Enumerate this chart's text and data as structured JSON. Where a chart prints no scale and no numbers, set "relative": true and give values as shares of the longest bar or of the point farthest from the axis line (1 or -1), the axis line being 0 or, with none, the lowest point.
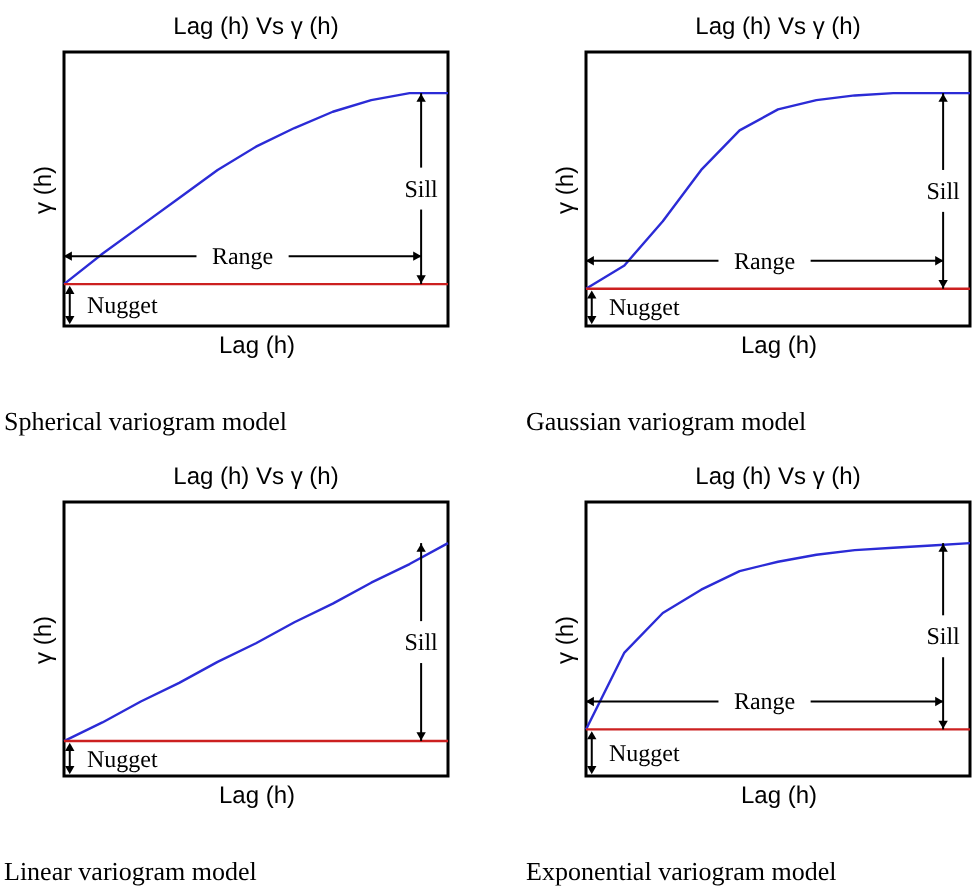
{
  "chart_data": [
    {
      "type": "line",
      "title": "Lag (h) Vs γ (h)",
      "xlabel": "Lag (h)",
      "ylabel": "γ (h)",
      "relative": true,
      "categories": [
        null,
        null,
        null,
        null,
        null,
        null,
        null,
        null,
        null,
        null,
        null
      ],
      "series": [
        {
          "color": "#2b2bd6",
          "values": [
            0.18,
            0.31,
            0.43,
            0.55,
            0.67,
            0.77,
            0.85,
            0.92,
            0.97,
            1.0,
            1.0
          ]
        },
        {
          "color": "#cc2020",
          "values": [
            0.18,
            0.18,
            0.18,
            0.18,
            0.18,
            0.18,
            0.18,
            0.18,
            0.18,
            0.18,
            0.18
          ]
        }
      ],
      "annotations": [
        "Sill",
        "Range",
        "Nugget",
        "Spherical variogram model"
      ]
    },
    {
      "type": "line",
      "title": "Lag (h) Vs γ (h)",
      "xlabel": "Lag (h)",
      "ylabel": "γ (h)",
      "relative": true,
      "categories": [
        null,
        null,
        null,
        null,
        null,
        null,
        null,
        null,
        null,
        null,
        null
      ],
      "series": [
        {
          "color": "#2b2bd6",
          "values": [
            0.16,
            0.26,
            0.45,
            0.67,
            0.84,
            0.93,
            0.97,
            0.99,
            1.0,
            1.0,
            1.0
          ]
        },
        {
          "color": "#cc2020",
          "values": [
            0.16,
            0.16,
            0.16,
            0.16,
            0.16,
            0.16,
            0.16,
            0.16,
            0.16,
            0.16,
            0.16
          ]
        }
      ],
      "annotations": [
        "Sill",
        "Range",
        "Nugget",
        "Gaussian variogram model"
      ]
    },
    {
      "type": "line",
      "title": "Lag (h) Vs γ (h)",
      "xlabel": "Lag (h)",
      "ylabel": "γ (h)",
      "relative": true,
      "categories": [
        null,
        null,
        null,
        null,
        null,
        null,
        null,
        null,
        null,
        null,
        null
      ],
      "series": [
        {
          "color": "#2b2bd6",
          "values": [
            0.15,
            0.23,
            0.32,
            0.4,
            0.49,
            0.57,
            0.66,
            0.74,
            0.83,
            0.91,
            1.0
          ]
        },
        {
          "color": "#cc2020",
          "values": [
            0.15,
            0.15,
            0.15,
            0.15,
            0.15,
            0.15,
            0.15,
            0.15,
            0.15,
            0.15,
            0.15
          ]
        }
      ],
      "annotations": [
        "Sill",
        "Nugget",
        "Linear variogram model"
      ]
    },
    {
      "type": "line",
      "title": "Lag (h) Vs γ (h)",
      "xlabel": "Lag (h)",
      "ylabel": "γ (h)",
      "relative": true,
      "categories": [
        null,
        null,
        null,
        null,
        null,
        null,
        null,
        null,
        null,
        null,
        null
      ],
      "series": [
        {
          "color": "#2b2bd6",
          "values": [
            0.2,
            0.53,
            0.7,
            0.8,
            0.88,
            0.92,
            0.95,
            0.97,
            0.98,
            0.99,
            1.0
          ]
        },
        {
          "color": "#cc2020",
          "values": [
            0.2,
            0.2,
            0.2,
            0.2,
            0.2,
            0.2,
            0.2,
            0.2,
            0.2,
            0.2,
            0.2
          ]
        }
      ],
      "annotations": [
        "Sill",
        "Range",
        "Nugget",
        "Exponential variogram model"
      ]
    }
  ]
}
